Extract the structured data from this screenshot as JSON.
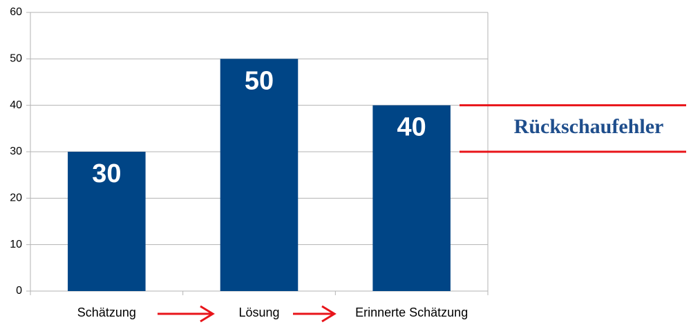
{
  "chart_data": {
    "type": "bar",
    "annotation": "Rückschaufehler",
    "categories": [
      "Schätzung",
      "Lösung",
      "Erinnerte Schätzung"
    ],
    "values": [
      30,
      50,
      40
    ],
    "color": "#004586",
    "ylim": [
      0,
      60
    ],
    "yticks": [
      0,
      10,
      20,
      30,
      40,
      50,
      60
    ],
    "grid": true
  }
}
